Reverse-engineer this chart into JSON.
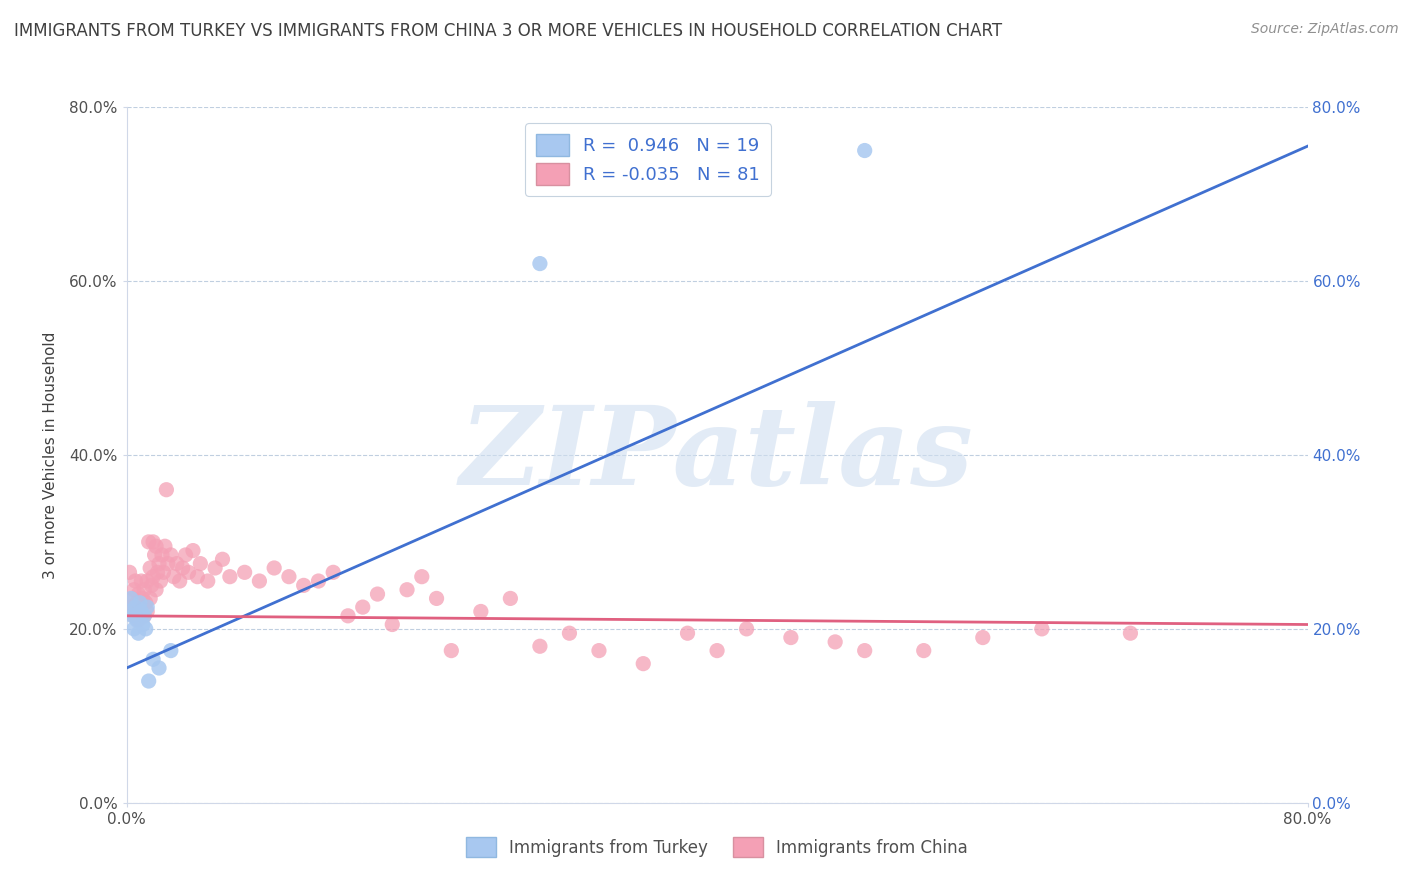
{
  "title": "IMMIGRANTS FROM TURKEY VS IMMIGRANTS FROM CHINA 3 OR MORE VEHICLES IN HOUSEHOLD CORRELATION CHART",
  "source": "Source: ZipAtlas.com",
  "ylabel": "3 or more Vehicles in Household",
  "watermark": "ZIPatlas",
  "legend_turkey_R": "R =  0.946",
  "legend_turkey_N": "N = 19",
  "legend_china_R": "R = -0.035",
  "legend_china_N": "N = 81",
  "xmin": 0.0,
  "xmax": 0.8,
  "ymin": 0.0,
  "ymax": 0.8,
  "turkey_color": "#a8c8f0",
  "china_color": "#f4a0b5",
  "turkey_line_color": "#4070d0",
  "china_line_color": "#e06080",
  "background_color": "#ffffff",
  "grid_color": "#c0cfe0",
  "title_color": "#404040",
  "source_color": "#909090",
  "turkey_scatter": [
    [
      0.002,
      0.22
    ],
    [
      0.003,
      0.235
    ],
    [
      0.004,
      0.215
    ],
    [
      0.005,
      0.2
    ],
    [
      0.006,
      0.225
    ],
    [
      0.007,
      0.21
    ],
    [
      0.008,
      0.195
    ],
    [
      0.009,
      0.23
    ],
    [
      0.01,
      0.22
    ],
    [
      0.011,
      0.205
    ],
    [
      0.012,
      0.215
    ],
    [
      0.013,
      0.2
    ],
    [
      0.014,
      0.225
    ],
    [
      0.015,
      0.14
    ],
    [
      0.018,
      0.165
    ],
    [
      0.022,
      0.155
    ],
    [
      0.03,
      0.175
    ],
    [
      0.28,
      0.62
    ],
    [
      0.5,
      0.75
    ]
  ],
  "china_scatter": [
    [
      0.002,
      0.265
    ],
    [
      0.003,
      0.225
    ],
    [
      0.004,
      0.235
    ],
    [
      0.005,
      0.245
    ],
    [
      0.005,
      0.215
    ],
    [
      0.006,
      0.255
    ],
    [
      0.006,
      0.22
    ],
    [
      0.007,
      0.23
    ],
    [
      0.008,
      0.24
    ],
    [
      0.008,
      0.21
    ],
    [
      0.009,
      0.225
    ],
    [
      0.01,
      0.255
    ],
    [
      0.01,
      0.22
    ],
    [
      0.011,
      0.235
    ],
    [
      0.012,
      0.215
    ],
    [
      0.012,
      0.245
    ],
    [
      0.013,
      0.23
    ],
    [
      0.014,
      0.255
    ],
    [
      0.014,
      0.22
    ],
    [
      0.015,
      0.3
    ],
    [
      0.016,
      0.27
    ],
    [
      0.016,
      0.235
    ],
    [
      0.017,
      0.25
    ],
    [
      0.018,
      0.3
    ],
    [
      0.018,
      0.26
    ],
    [
      0.019,
      0.285
    ],
    [
      0.02,
      0.295
    ],
    [
      0.02,
      0.245
    ],
    [
      0.021,
      0.265
    ],
    [
      0.022,
      0.275
    ],
    [
      0.023,
      0.255
    ],
    [
      0.024,
      0.285
    ],
    [
      0.025,
      0.265
    ],
    [
      0.026,
      0.295
    ],
    [
      0.027,
      0.36
    ],
    [
      0.028,
      0.275
    ],
    [
      0.03,
      0.285
    ],
    [
      0.032,
      0.26
    ],
    [
      0.034,
      0.275
    ],
    [
      0.036,
      0.255
    ],
    [
      0.038,
      0.27
    ],
    [
      0.04,
      0.285
    ],
    [
      0.042,
      0.265
    ],
    [
      0.045,
      0.29
    ],
    [
      0.048,
      0.26
    ],
    [
      0.05,
      0.275
    ],
    [
      0.055,
      0.255
    ],
    [
      0.06,
      0.27
    ],
    [
      0.065,
      0.28
    ],
    [
      0.07,
      0.26
    ],
    [
      0.08,
      0.265
    ],
    [
      0.09,
      0.255
    ],
    [
      0.1,
      0.27
    ],
    [
      0.11,
      0.26
    ],
    [
      0.12,
      0.25
    ],
    [
      0.13,
      0.255
    ],
    [
      0.14,
      0.265
    ],
    [
      0.15,
      0.215
    ],
    [
      0.16,
      0.225
    ],
    [
      0.17,
      0.24
    ],
    [
      0.18,
      0.205
    ],
    [
      0.19,
      0.245
    ],
    [
      0.2,
      0.26
    ],
    [
      0.21,
      0.235
    ],
    [
      0.22,
      0.175
    ],
    [
      0.24,
      0.22
    ],
    [
      0.26,
      0.235
    ],
    [
      0.28,
      0.18
    ],
    [
      0.3,
      0.195
    ],
    [
      0.32,
      0.175
    ],
    [
      0.35,
      0.16
    ],
    [
      0.38,
      0.195
    ],
    [
      0.4,
      0.175
    ],
    [
      0.42,
      0.2
    ],
    [
      0.45,
      0.19
    ],
    [
      0.48,
      0.185
    ],
    [
      0.5,
      0.175
    ],
    [
      0.54,
      0.175
    ],
    [
      0.58,
      0.19
    ],
    [
      0.62,
      0.2
    ],
    [
      0.68,
      0.195
    ]
  ],
  "ytick_labels": [
    "0.0%",
    "20.0%",
    "40.0%",
    "60.0%",
    "80.0%"
  ],
  "ytick_values": [
    0.0,
    0.2,
    0.4,
    0.6,
    0.8
  ],
  "xtick_left_label": "0.0%",
  "xtick_right_label": "80.0%"
}
